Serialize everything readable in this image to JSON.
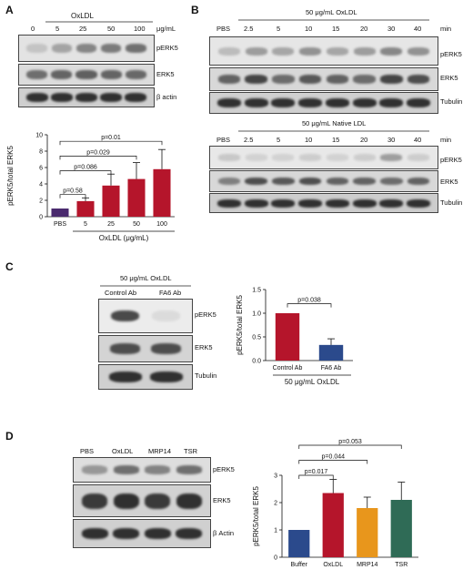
{
  "panels": {
    "A": {
      "label": "A",
      "treatment": "OxLDL",
      "unit": "μg/mL",
      "lanes": [
        "0",
        "5",
        "25",
        "50",
        "100"
      ],
      "blots": [
        "pERK5",
        "ERK5",
        "β actin"
      ]
    },
    "B": {
      "label": "B",
      "unit": "min",
      "lanes": [
        "PBS",
        "2.5",
        "5",
        "10",
        "15",
        "20",
        "30",
        "40"
      ],
      "top": {
        "title": "50 μg/mL OxLDL",
        "blots": [
          "pERK5",
          "ERK5",
          "Tubulin"
        ]
      },
      "bottom": {
        "title": "50 μg/mL Native LDL",
        "blots": [
          "pERK5",
          "ERK5",
          "Tubulin"
        ]
      }
    },
    "C": {
      "label": "C",
      "title": "50 μg/mL OxLDL",
      "lanes": [
        "Control Ab",
        "FA6 Ab"
      ],
      "blots": [
        "pERK5",
        "ERK5",
        "Tubulin"
      ]
    },
    "D": {
      "label": "D",
      "lanes": [
        "PBS",
        "OxLDL",
        "MRP14",
        "TSR"
      ],
      "blots": [
        "pERK5",
        "ERK5",
        "β Actin"
      ]
    }
  },
  "chart_data": [
    {
      "type": "bar",
      "panel": "A",
      "categories": [
        "PBS",
        "5",
        "25",
        "50",
        "100"
      ],
      "values": [
        1.0,
        1.9,
        3.8,
        4.6,
        5.8
      ],
      "errors": [
        0,
        0.4,
        1.4,
        2.0,
        2.4
      ],
      "colors": [
        "#4a2a6e",
        "#b5152b",
        "#b5152b",
        "#b5152b",
        "#b5152b"
      ],
      "ylabel": "pERK5/total ERK5",
      "xlabel": "OxLDL (μg/mL)",
      "ylim": [
        0,
        10
      ],
      "yticks": [
        0,
        2,
        4,
        6,
        8,
        10
      ],
      "annotations": [
        "p=0.58",
        "p=0.086",
        "p=0.029",
        "p=0.01"
      ]
    },
    {
      "type": "bar",
      "panel": "C",
      "categories": [
        "Control Ab",
        "FA6 Ab"
      ],
      "values": [
        1.0,
        0.33
      ],
      "errors": [
        0,
        0.13
      ],
      "colors": [
        "#b5152b",
        "#2b4a8c"
      ],
      "ylabel": "pERK5/total ERK5",
      "xlabel": "50 μg/mL OxLDL",
      "ylim": [
        0,
        1.5
      ],
      "yticks": [
        "0.0",
        "0.5",
        "1.0",
        "1.5"
      ],
      "annotations": [
        "p=0.038"
      ]
    },
    {
      "type": "bar",
      "panel": "D",
      "categories": [
        "Buffer",
        "OxLDL",
        "MRP14",
        "TSR"
      ],
      "values": [
        1.0,
        2.35,
        1.8,
        2.1
      ],
      "errors": [
        0,
        0.5,
        0.4,
        0.65
      ],
      "colors": [
        "#2b4a8c",
        "#b5152b",
        "#e8961c",
        "#2f6b56"
      ],
      "ylabel": "pERK5/total ERK5",
      "ylim": [
        0,
        3
      ],
      "yticks": [
        0,
        1,
        2,
        3
      ],
      "annotations": [
        "p=0.017",
        "p=0.044",
        "p=0.053"
      ]
    }
  ]
}
